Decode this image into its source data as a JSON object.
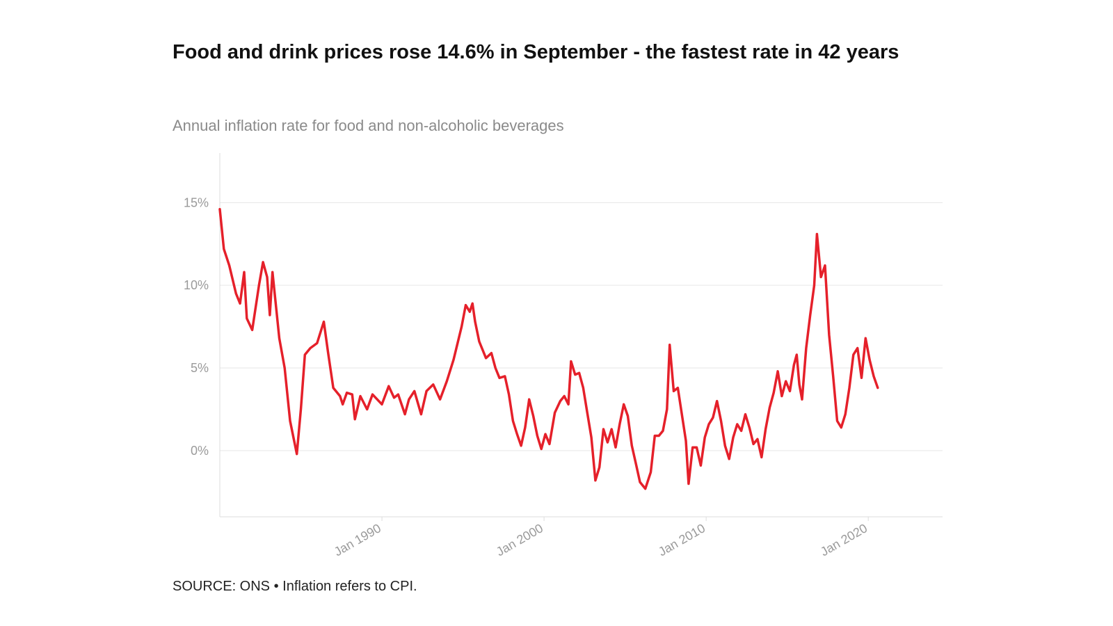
{
  "title": "Food and drink prices rose 14.6% in September - the fastest rate in 42 years",
  "subtitle": "Annual inflation rate for food and non-alcoholic beverages",
  "footer": "SOURCE: ONS • Inflation refers to CPI.",
  "colors": {
    "line": "#e5202a",
    "grid": "#e6e6e6",
    "axis": "#dddddd",
    "ticks": "#9a9a9a"
  },
  "chart_data": {
    "type": "line",
    "title": "Food and drink prices rose 14.6% in September - the fastest rate in 42 years",
    "subtitle": "Annual inflation rate for food and non-alcoholic beverages",
    "xlabel": "",
    "ylabel": "",
    "xlim": [
      "1980-01",
      "2024-08"
    ],
    "ylim": [
      -4,
      18
    ],
    "y_ticks": [
      0,
      5,
      10,
      15
    ],
    "y_tick_labels": [
      "0%",
      "5%",
      "10%",
      "15%"
    ],
    "x_ticks": [
      "1990-01",
      "2000-01",
      "2010-01",
      "2020-01"
    ],
    "x_tick_labels": [
      "Jan 1990",
      "Jan 2000",
      "Jan 2010",
      "Jan 2020"
    ],
    "grid": true,
    "legend": "none",
    "series": [
      {
        "color": "#e5202a",
        "points": [
          [
            "1980-01",
            14.6
          ],
          [
            "1980-04",
            12.2
          ],
          [
            "1980-08",
            11.2
          ],
          [
            "1981-01",
            9.5
          ],
          [
            "1981-04",
            8.9
          ],
          [
            "1981-07",
            10.8
          ],
          [
            "1981-09",
            8.0
          ],
          [
            "1982-01",
            7.3
          ],
          [
            "1982-06",
            10.0
          ],
          [
            "1982-09",
            11.4
          ],
          [
            "1982-12",
            10.5
          ],
          [
            "1983-02",
            8.2
          ],
          [
            "1983-04",
            10.8
          ],
          [
            "1983-09",
            6.8
          ],
          [
            "1984-01",
            5.0
          ],
          [
            "1984-05",
            1.8
          ],
          [
            "1984-08",
            0.6
          ],
          [
            "1984-10",
            -0.2
          ],
          [
            "1985-01",
            2.5
          ],
          [
            "1985-04",
            5.8
          ],
          [
            "1985-08",
            6.2
          ],
          [
            "1986-01",
            6.5
          ],
          [
            "1986-06",
            7.8
          ],
          [
            "1986-09",
            6.0
          ],
          [
            "1987-01",
            3.8
          ],
          [
            "1987-06",
            3.3
          ],
          [
            "1987-08",
            2.8
          ],
          [
            "1987-11",
            3.5
          ],
          [
            "1988-03",
            3.4
          ],
          [
            "1988-05",
            1.9
          ],
          [
            "1988-09",
            3.3
          ],
          [
            "1989-02",
            2.5
          ],
          [
            "1989-06",
            3.4
          ],
          [
            "1990-01",
            2.8
          ],
          [
            "1990-06",
            3.9
          ],
          [
            "1990-10",
            3.2
          ],
          [
            "1991-01",
            3.4
          ],
          [
            "1991-06",
            2.2
          ],
          [
            "1991-09",
            3.1
          ],
          [
            "1992-01",
            3.6
          ],
          [
            "1992-06",
            2.2
          ],
          [
            "1992-10",
            3.6
          ],
          [
            "1993-03",
            4.0
          ],
          [
            "1993-08",
            3.1
          ],
          [
            "1994-01",
            4.2
          ],
          [
            "1994-06",
            5.5
          ],
          [
            "1994-12",
            7.5
          ],
          [
            "1995-03",
            8.8
          ],
          [
            "1995-06",
            8.4
          ],
          [
            "1995-08",
            8.9
          ],
          [
            "1995-10",
            7.8
          ],
          [
            "1996-01",
            6.6
          ],
          [
            "1996-06",
            5.6
          ],
          [
            "1996-10",
            5.9
          ],
          [
            "1997-01",
            5.0
          ],
          [
            "1997-04",
            4.4
          ],
          [
            "1997-08",
            4.5
          ],
          [
            "1997-11",
            3.4
          ],
          [
            "1998-02",
            1.8
          ],
          [
            "1998-05",
            1.0
          ],
          [
            "1998-08",
            0.3
          ],
          [
            "1998-11",
            1.4
          ],
          [
            "1999-02",
            3.1
          ],
          [
            "1999-05",
            2.1
          ],
          [
            "1999-08",
            0.9
          ],
          [
            "1999-11",
            0.1
          ],
          [
            "2000-02",
            1.0
          ],
          [
            "2000-05",
            0.4
          ],
          [
            "2000-09",
            2.3
          ],
          [
            "2001-01",
            3.0
          ],
          [
            "2001-04",
            3.3
          ],
          [
            "2001-07",
            2.8
          ],
          [
            "2001-09",
            5.4
          ],
          [
            "2001-12",
            4.6
          ],
          [
            "2002-03",
            4.7
          ],
          [
            "2002-06",
            3.8
          ],
          [
            "2002-09",
            2.3
          ],
          [
            "2002-12",
            0.8
          ],
          [
            "2003-03",
            -1.8
          ],
          [
            "2003-06",
            -1.0
          ],
          [
            "2003-09",
            1.3
          ],
          [
            "2003-12",
            0.5
          ],
          [
            "2004-03",
            1.3
          ],
          [
            "2004-06",
            0.2
          ],
          [
            "2004-09",
            1.6
          ],
          [
            "2004-12",
            2.8
          ],
          [
            "2005-03",
            2.1
          ],
          [
            "2005-06",
            0.3
          ],
          [
            "2005-09",
            -0.8
          ],
          [
            "2005-12",
            -1.9
          ],
          [
            "2006-04",
            -2.3
          ],
          [
            "2006-08",
            -1.3
          ],
          [
            "2006-11",
            0.9
          ],
          [
            "2007-02",
            0.9
          ],
          [
            "2007-05",
            1.2
          ],
          [
            "2007-08",
            2.5
          ],
          [
            "2007-10",
            6.4
          ],
          [
            "2008-01",
            3.6
          ],
          [
            "2008-04",
            3.8
          ],
          [
            "2008-07",
            2.2
          ],
          [
            "2008-10",
            0.6
          ],
          [
            "2008-12",
            -2.0
          ],
          [
            "2009-03",
            0.2
          ],
          [
            "2009-06",
            0.2
          ],
          [
            "2009-09",
            -0.9
          ],
          [
            "2009-12",
            0.8
          ],
          [
            "2010-03",
            1.6
          ],
          [
            "2010-06",
            2.0
          ],
          [
            "2010-09",
            3.0
          ],
          [
            "2010-12",
            1.8
          ],
          [
            "2011-03",
            0.3
          ],
          [
            "2011-06",
            -0.5
          ],
          [
            "2011-09",
            0.8
          ],
          [
            "2011-12",
            1.6
          ],
          [
            "2012-03",
            1.2
          ],
          [
            "2012-06",
            2.2
          ],
          [
            "2012-09",
            1.4
          ],
          [
            "2012-12",
            0.4
          ],
          [
            "2013-03",
            0.7
          ],
          [
            "2013-06",
            -0.4
          ],
          [
            "2013-09",
            1.3
          ],
          [
            "2013-12",
            2.6
          ],
          [
            "2014-03",
            3.5
          ],
          [
            "2014-06",
            4.8
          ],
          [
            "2014-09",
            3.3
          ],
          [
            "2014-12",
            4.2
          ],
          [
            "2015-03",
            3.6
          ],
          [
            "2015-06",
            5.2
          ],
          [
            "2015-08",
            5.8
          ],
          [
            "2015-10",
            4.0
          ],
          [
            "2015-12",
            3.1
          ],
          [
            "2016-03",
            6.2
          ],
          [
            "2016-06",
            8.2
          ],
          [
            "2016-09",
            10.0
          ],
          [
            "2016-11",
            13.1
          ],
          [
            "2017-02",
            10.5
          ],
          [
            "2017-05",
            11.2
          ],
          [
            "2017-08",
            7.0
          ],
          [
            "2017-11",
            4.5
          ],
          [
            "2018-02",
            1.8
          ],
          [
            "2018-05",
            1.4
          ],
          [
            "2018-08",
            2.2
          ],
          [
            "2018-11",
            3.8
          ],
          [
            "2019-02",
            5.8
          ],
          [
            "2019-05",
            6.2
          ],
          [
            "2019-08",
            4.4
          ],
          [
            "2019-11",
            6.8
          ],
          [
            "2020-02",
            5.5
          ],
          [
            "2020-05",
            4.5
          ],
          [
            "2020-08",
            3.8
          ]
        ]
      }
    ]
  }
}
